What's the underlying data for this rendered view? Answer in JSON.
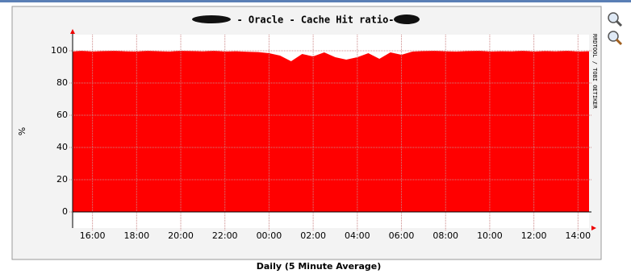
{
  "chart_data": {
    "type": "area",
    "title": " - Oracle - Cache Hit ratio-",
    "ylabel": "%",
    "side_text": "RRDTOOL / TOBI OETIKER",
    "footer": "Daily (5 Minute Average)",
    "x": [
      15.1,
      15.5,
      16,
      16.5,
      17,
      17.5,
      18,
      18.5,
      19,
      19.5,
      20,
      20.5,
      21,
      21.5,
      22,
      22.5,
      23,
      23.5,
      24,
      24.5,
      25,
      25.5,
      26,
      26.5,
      27,
      27.5,
      28,
      28.5,
      29,
      29.5,
      30,
      30.5,
      31,
      31.5,
      32,
      32.5,
      33,
      33.5,
      34,
      34.5,
      35,
      35.5,
      36,
      36.5,
      37,
      37.5,
      38,
      38.5
    ],
    "values": [
      99.5,
      100,
      99.5,
      99.8,
      100,
      99.6,
      99.5,
      100,
      99.7,
      99.5,
      100,
      99.8,
      99.6,
      100,
      99.5,
      99.7,
      99.4,
      99.2,
      98.5,
      97,
      93.5,
      98,
      96.5,
      99,
      96,
      94.5,
      96,
      98.5,
      95,
      99,
      97.5,
      99.5,
      99.8,
      100,
      99.6,
      99.5,
      99.8,
      100,
      99.5,
      99.7,
      99.6,
      100,
      99.5,
      99.8,
      99.6,
      100,
      99.5,
      99.7
    ],
    "color": "#ff0000",
    "xlim": [
      15.1,
      38.5
    ],
    "xticks": [
      {
        "value": 16,
        "label": "16:00"
      },
      {
        "value": 18,
        "label": "18:00"
      },
      {
        "value": 20,
        "label": "20:00"
      },
      {
        "value": 22,
        "label": "22:00"
      },
      {
        "value": 24,
        "label": "00:00"
      },
      {
        "value": 26,
        "label": "02:00"
      },
      {
        "value": 28,
        "label": "04:00"
      },
      {
        "value": 30,
        "label": "06:00"
      },
      {
        "value": 32,
        "label": "08:00"
      },
      {
        "value": 34,
        "label": "10:00"
      },
      {
        "value": 36,
        "label": "12:00"
      },
      {
        "value": 38,
        "label": "14:00"
      }
    ],
    "ylim": [
      -10,
      110
    ],
    "yticks": [
      0,
      20,
      40,
      60,
      80,
      100
    ],
    "grid": true
  }
}
